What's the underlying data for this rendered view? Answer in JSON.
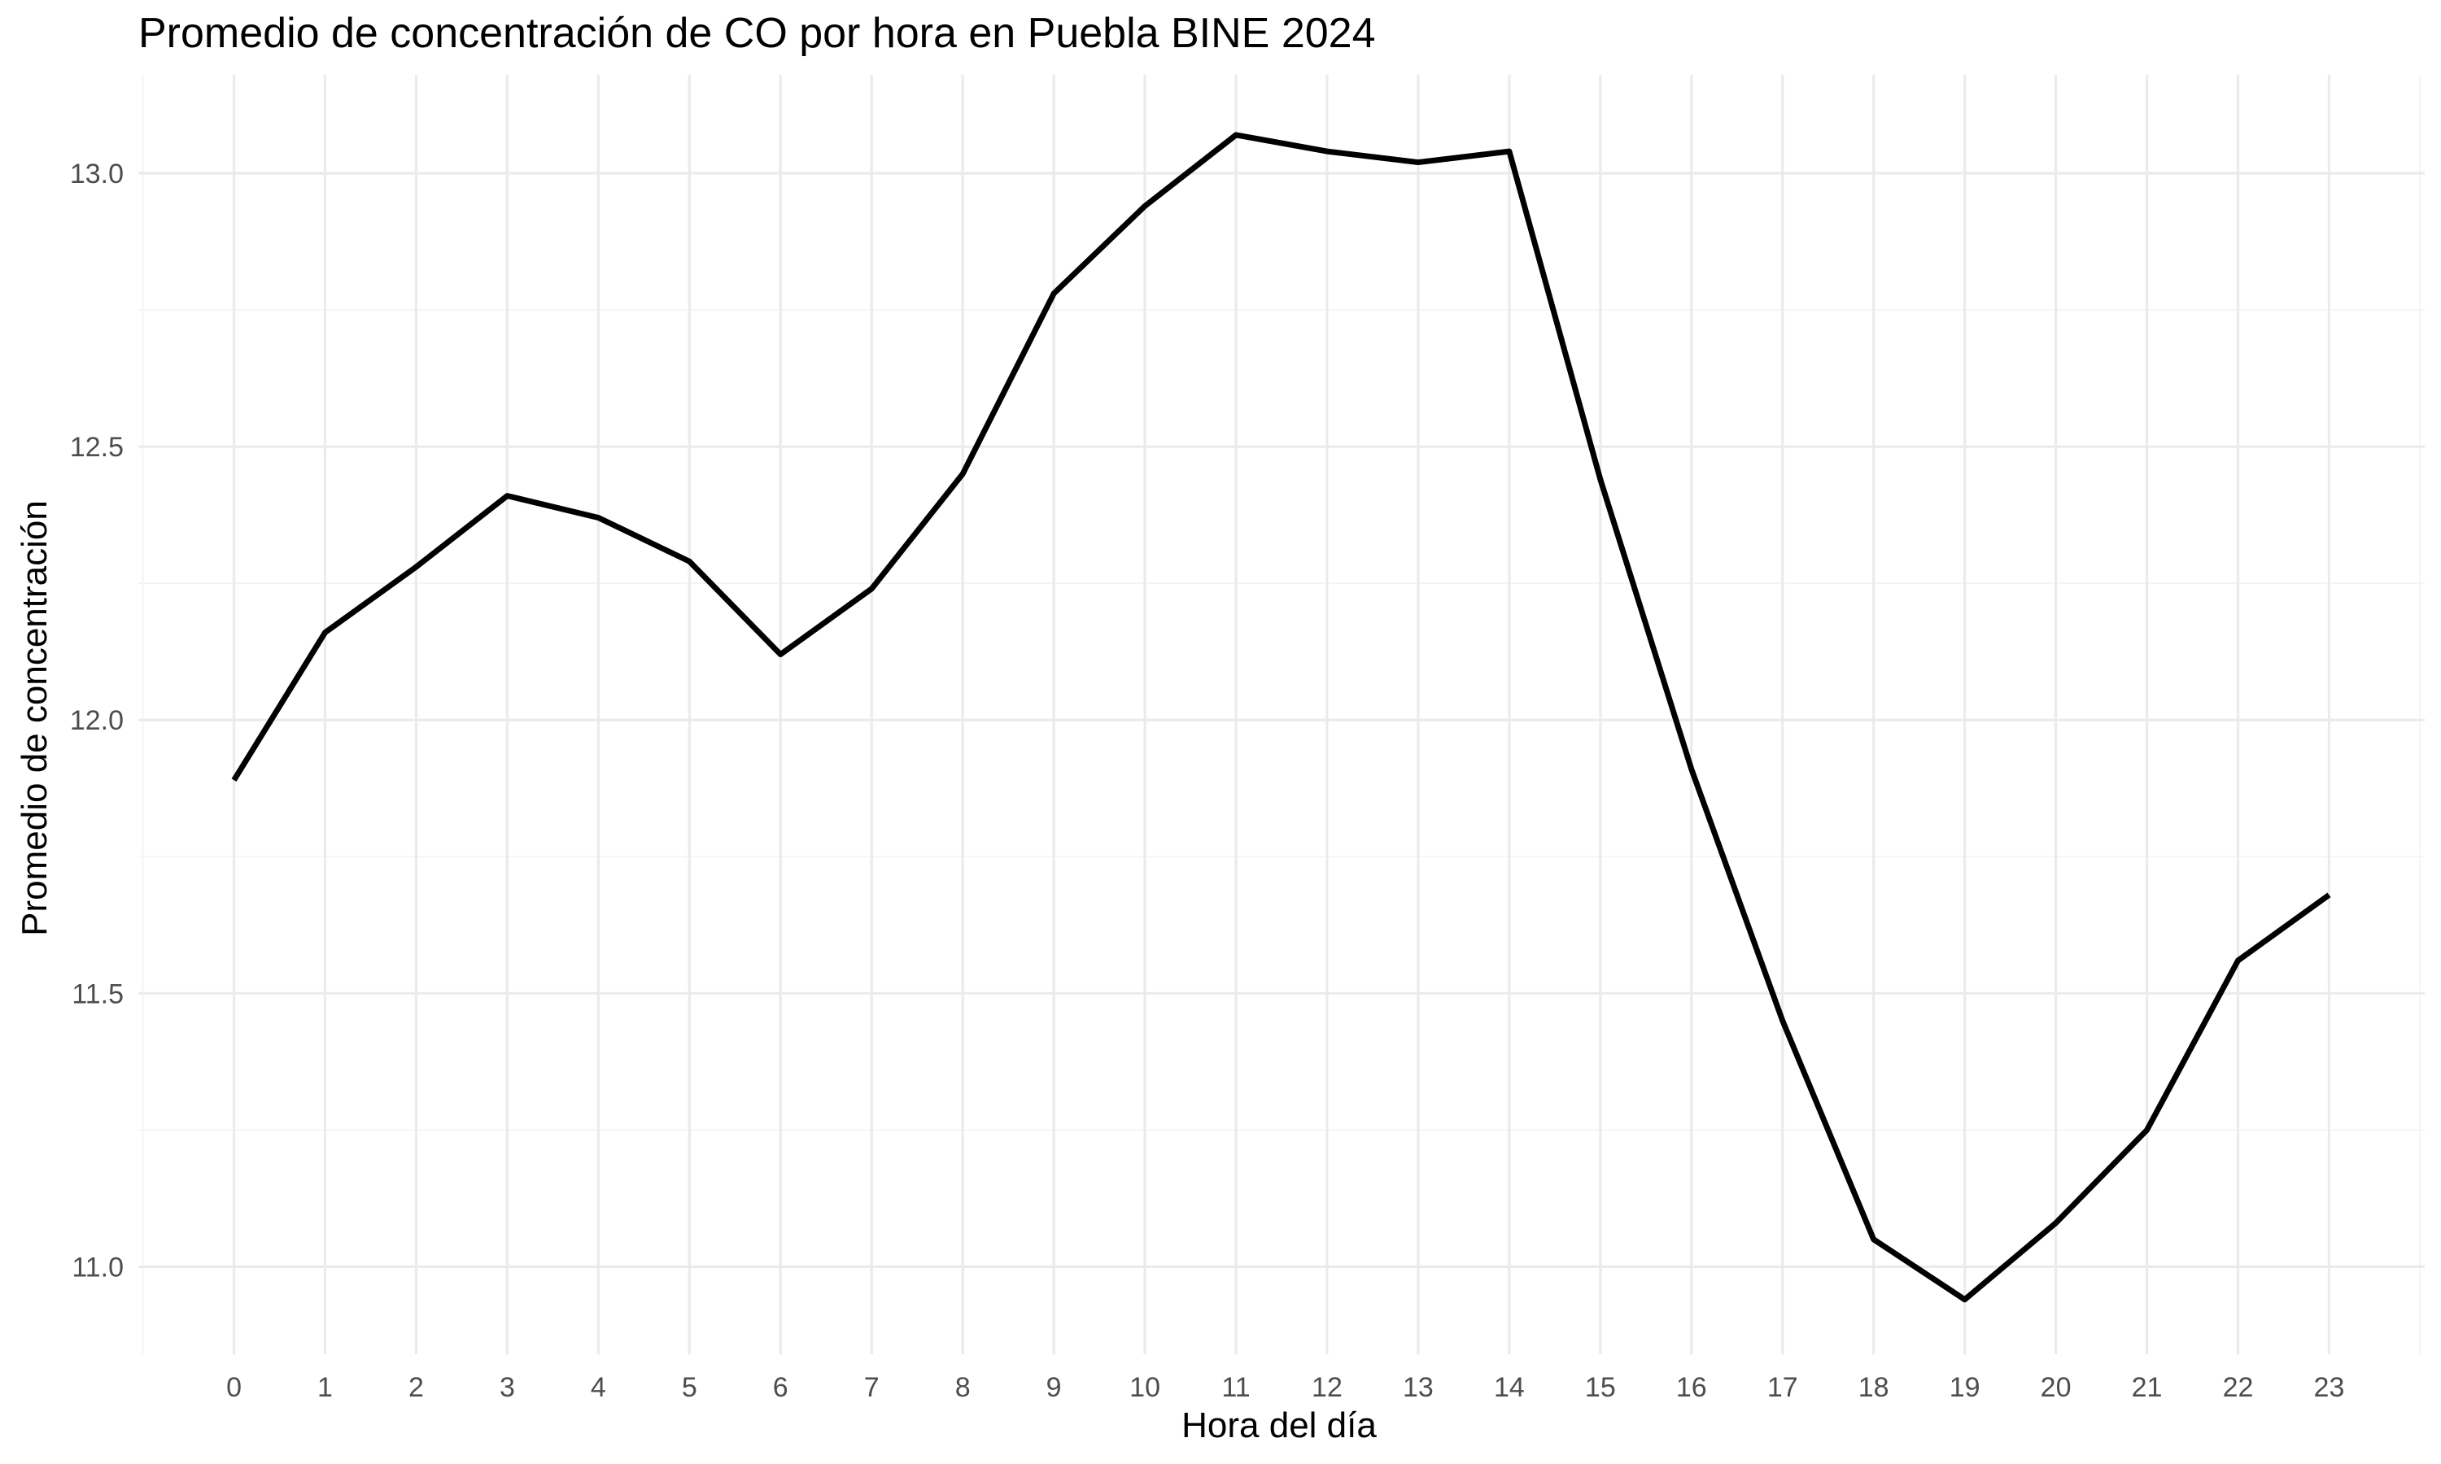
{
  "chart_data": {
    "type": "line",
    "title": "Promedio de concentración de CO por hora en Puebla BINE 2024",
    "xlabel": "Hora del día",
    "ylabel": "Promedio de concentración",
    "x": [
      0,
      1,
      2,
      3,
      4,
      5,
      6,
      7,
      8,
      9,
      10,
      11,
      12,
      13,
      14,
      15,
      16,
      17,
      18,
      19,
      20,
      21,
      22,
      23
    ],
    "x_tick_labels": [
      "0",
      "1",
      "2",
      "3",
      "4",
      "5",
      "6",
      "7",
      "8",
      "9",
      "10",
      "11",
      "12",
      "13",
      "14",
      "15",
      "16",
      "17",
      "18",
      "19",
      "20",
      "21",
      "22",
      "23"
    ],
    "y_ticks": [
      11.0,
      11.5,
      12.0,
      12.5,
      13.0
    ],
    "y_tick_labels": [
      "11.0",
      "11.5",
      "12.0",
      "12.5",
      "13.0"
    ],
    "xlim": [
      -1.05,
      24.05
    ],
    "ylim": [
      10.84,
      13.18
    ],
    "grid": true,
    "legend": "none",
    "series": [
      {
        "color": "#000000",
        "values": [
          11.89,
          12.16,
          12.28,
          12.41,
          12.37,
          12.29,
          12.12,
          12.24,
          12.45,
          12.78,
          12.94,
          13.07,
          13.04,
          13.02,
          13.04,
          12.44,
          11.91,
          11.45,
          11.05,
          10.94,
          11.08,
          11.25,
          11.56,
          11.68
        ]
      }
    ]
  }
}
